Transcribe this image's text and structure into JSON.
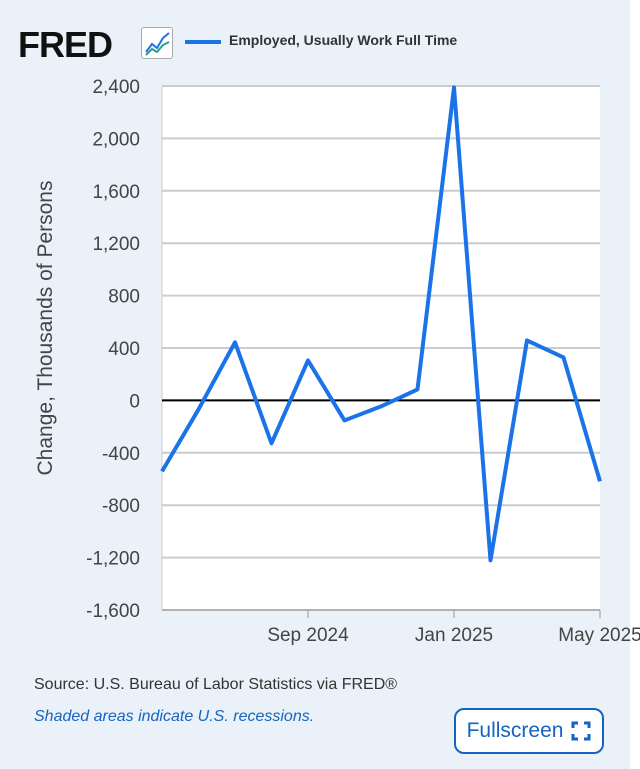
{
  "header": {
    "logo": "FRED",
    "legend": "Employed, Usually Work Full Time",
    "series_color": "#1a73e8"
  },
  "footer": {
    "source": "Source: U.S. Bureau of Labor Statistics via FRED®",
    "recessions": "Shaded areas indicate U.S. recessions.",
    "fullscreen": "Fullscreen"
  },
  "chart_data": {
    "type": "line",
    "title": "",
    "xlabel": "",
    "ylabel": "Change, Thousands of Persons",
    "ylim": [
      -1600,
      2400
    ],
    "yticks": [
      2400,
      2000,
      1600,
      1200,
      800,
      400,
      0,
      -400,
      -800,
      -1200,
      -1600
    ],
    "ytick_labels": [
      "2,400",
      "2,000",
      "1,600",
      "1,200",
      "800",
      "400",
      "0",
      "-400",
      "-800",
      "-1,200",
      "-1,600"
    ],
    "x": [
      "2024-05",
      "2024-06",
      "2024-07",
      "2024-08",
      "2024-09",
      "2024-10",
      "2024-11",
      "2024-12",
      "2025-01",
      "2025-02",
      "2025-03",
      "2025-04",
      "2025-05"
    ],
    "xtick_labels": [
      {
        "index": 4,
        "label": "Sep 2024"
      },
      {
        "index": 8,
        "label": "Jan 2025"
      },
      {
        "index": 12,
        "label": "May 2025"
      }
    ],
    "series": [
      {
        "name": "Employed, Usually Work Full Time",
        "values": [
          -542,
          -69,
          443,
          -328,
          305,
          -153,
          -46,
          84,
          2389,
          -1221,
          458,
          328,
          -618
        ]
      }
    ],
    "grid": true,
    "legend": "top"
  }
}
